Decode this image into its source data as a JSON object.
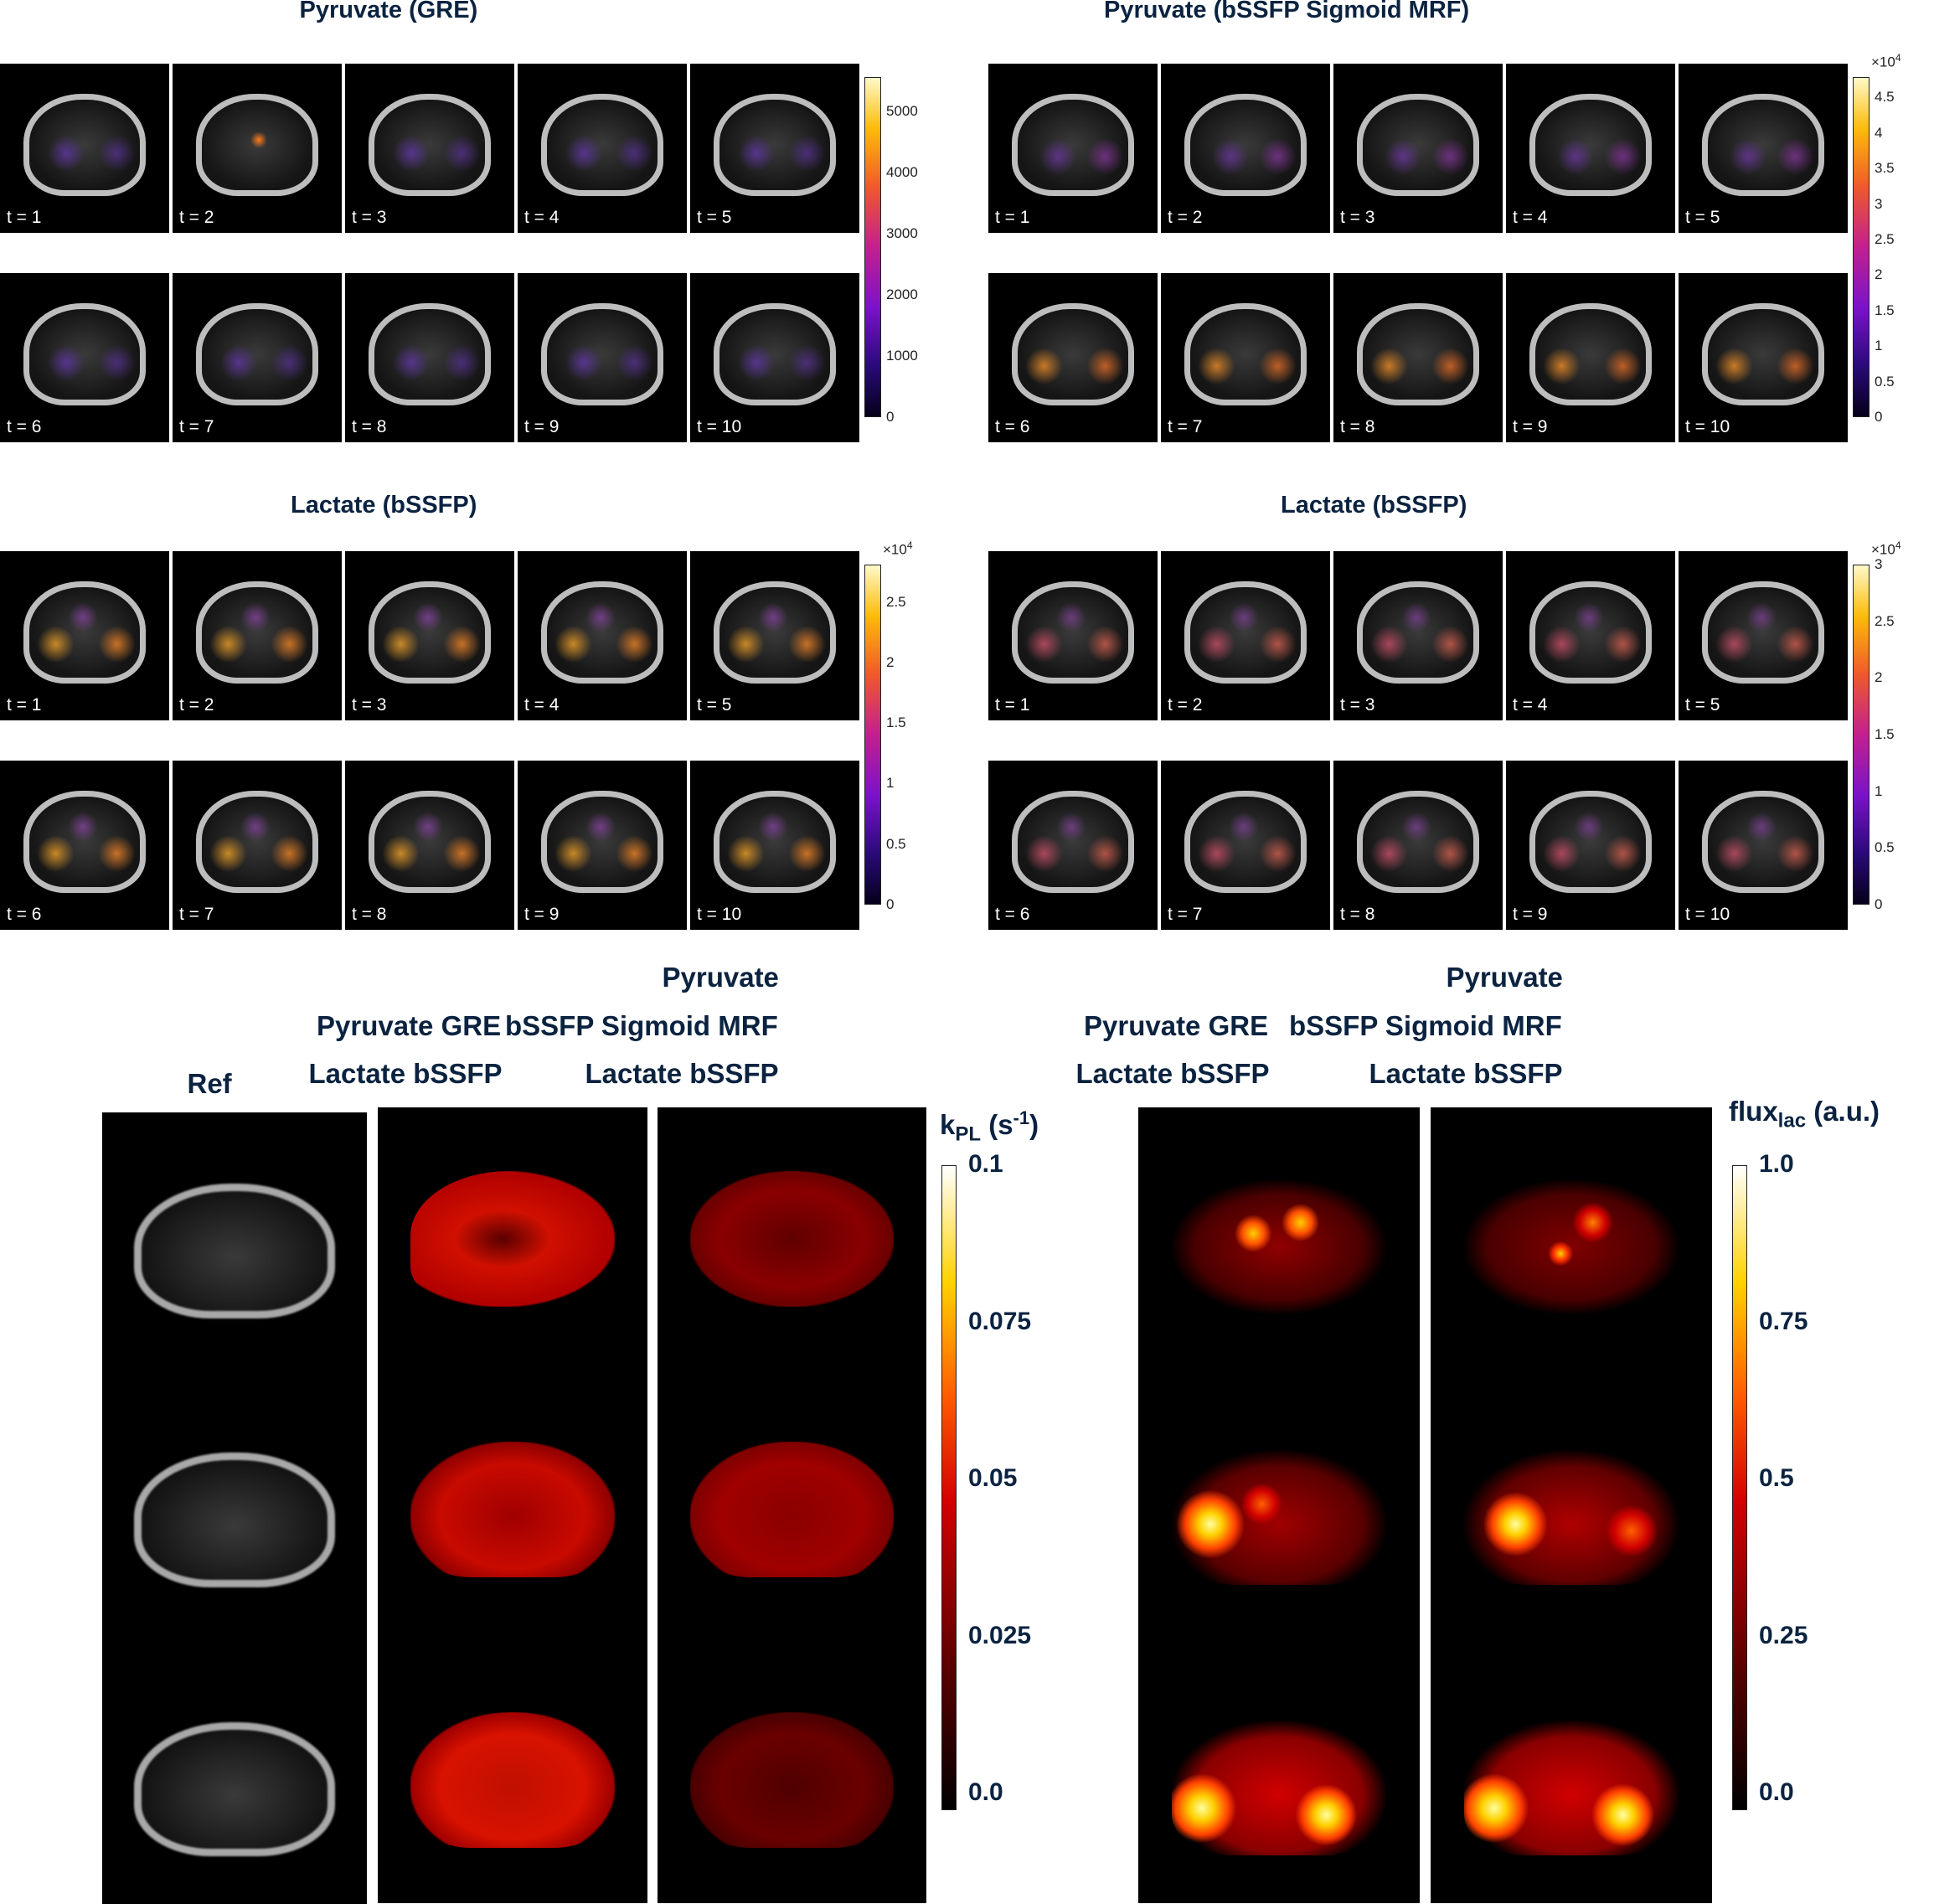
{
  "panels": [
    {
      "title": "Pyruvate (GRE)",
      "tiles": [
        "t = 1",
        "t = 2",
        "t = 3",
        "t = 4",
        "t = 5",
        "t = 6",
        "t = 7",
        "t = 8",
        "t = 9",
        "t = 10"
      ],
      "colorbar": {
        "multiplier": "",
        "ticks": [
          "5000",
          "4000",
          "3000",
          "2000",
          "1000",
          "0"
        ]
      }
    },
    {
      "title": "Pyruvate (bSSFP Sigmoid MRF)",
      "tiles": [
        "t = 1",
        "t = 2",
        "t = 3",
        "t = 4",
        "t = 5",
        "t = 6",
        "t = 7",
        "t = 8",
        "t = 9",
        "t = 10"
      ],
      "colorbar": {
        "multiplier": "×10",
        "exponent": "4",
        "ticks": [
          "4.5",
          "4",
          "3.5",
          "3",
          "2.5",
          "2",
          "1.5",
          "1",
          "0.5",
          "0"
        ]
      }
    },
    {
      "title": "Lactate (bSSFP)",
      "tiles": [
        "t = 1",
        "t = 2",
        "t = 3",
        "t = 4",
        "t = 5",
        "t = 6",
        "t = 7",
        "t = 8",
        "t = 9",
        "t = 10"
      ],
      "colorbar": {
        "multiplier": "×10",
        "exponent": "4",
        "ticks": [
          "2.5",
          "2",
          "1.5",
          "1",
          "0.5",
          "0"
        ]
      }
    },
    {
      "title": "Lactate (bSSFP)",
      "tiles": [
        "t = 1",
        "t = 2",
        "t = 3",
        "t = 4",
        "t = 5",
        "t = 6",
        "t = 7",
        "t = 8",
        "t = 9",
        "t = 10"
      ],
      "colorbar": {
        "multiplier": "×10",
        "exponent": "4",
        "ticks": [
          "3",
          "2.5",
          "2",
          "1.5",
          "1",
          "0.5",
          "0"
        ]
      }
    }
  ],
  "bottom": {
    "ref_label": "Ref",
    "col1": [
      "Pyruvate GRE",
      "Lactate bSSFP"
    ],
    "col2": [
      "Pyruvate",
      "bSSFP Sigmoid MRF",
      "Lactate bSSFP"
    ],
    "col3": [
      "Pyruvate GRE",
      "Lactate bSSFP"
    ],
    "col4": [
      "Pyruvate",
      "bSSFP Sigmoid MRF",
      "Lactate bSSFP"
    ],
    "kpl_label": {
      "main": "k",
      "sub": "PL",
      "unit_open": " (s",
      "sup": "-1",
      "unit_close": ")"
    },
    "kpl_ticks": [
      "0.1",
      "0.075",
      "0.05",
      "0.025",
      "0.0"
    ],
    "flux_label": {
      "main": "flux",
      "sub": "lac",
      "unit": " (a.u.)"
    },
    "flux_ticks": [
      "1.0",
      "0.75",
      "0.5",
      "0.25",
      "0.0"
    ]
  }
}
